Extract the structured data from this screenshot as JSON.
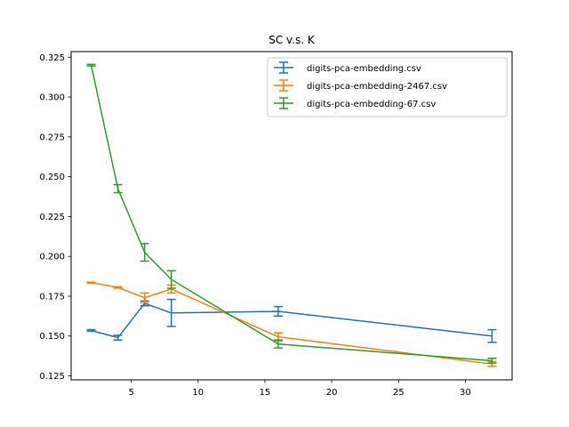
{
  "chart_data": {
    "type": "line",
    "title": "SC v.s. K",
    "xlabel": "",
    "ylabel": "",
    "xlim": [
      0.5,
      33.5
    ],
    "ylim": [
      0.1225,
      0.3285
    ],
    "xticks": [
      5,
      10,
      15,
      20,
      25,
      30
    ],
    "xtick_labels": [
      "5",
      "10",
      "15",
      "20",
      "25",
      "30"
    ],
    "yticks": [
      0.125,
      0.15,
      0.175,
      0.2,
      0.225,
      0.25,
      0.275,
      0.3,
      0.325
    ],
    "ytick_labels": [
      "0.125",
      "0.150",
      "0.175",
      "0.200",
      "0.225",
      "0.250",
      "0.275",
      "0.300",
      "0.325"
    ],
    "grid": false,
    "legend_position": "top-right",
    "series": [
      {
        "name": "digits-pca-embedding.csv",
        "color": "#1f77b4",
        "x": [
          2,
          4,
          6,
          8,
          16,
          32
        ],
        "y": [
          0.1535,
          0.149,
          0.1705,
          0.1645,
          0.1655,
          0.15
        ],
        "err": [
          0.0005,
          0.0015,
          0.0015,
          0.0085,
          0.003,
          0.004
        ]
      },
      {
        "name": "digits-pca-embedding-2467.csv",
        "color": "#ff7f0e",
        "x": [
          2,
          4,
          6,
          8,
          16,
          32
        ],
        "y": [
          0.1835,
          0.1805,
          0.174,
          0.1795,
          0.1495,
          0.1325
        ],
        "err": [
          0.0003,
          0.0004,
          0.003,
          0.0025,
          0.0025,
          0.0015
        ]
      },
      {
        "name": "digits-pca-embedding-67.csv",
        "color": "#2ca02c",
        "x": [
          2,
          4,
          6,
          8,
          16,
          32
        ],
        "y": [
          0.32,
          0.2425,
          0.2025,
          0.1855,
          0.145,
          0.1345
        ],
        "err": [
          0.0005,
          0.0025,
          0.0055,
          0.0055,
          0.0025,
          0.0015
        ]
      }
    ]
  }
}
